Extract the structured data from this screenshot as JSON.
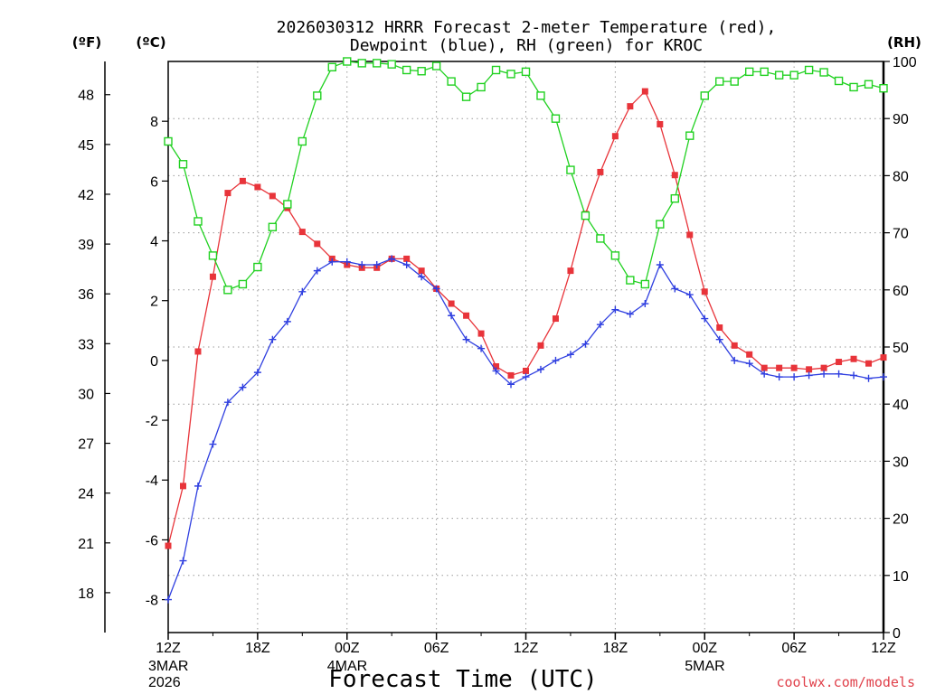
{
  "chart_data": {
    "type": "line",
    "title_line1": "2026030312 HRRR Forecast 2-meter Temperature (red),",
    "title_line2": "Dewpoint (blue), RH (green) for KROC",
    "left_unit_f": "(ºF)",
    "left_unit_c": "(ºC)",
    "right_unit": "(RH)",
    "xlabel": "Forecast Time (UTC)",
    "credit": "coolwx.com/models",
    "x_hours": [
      0,
      1,
      2,
      3,
      4,
      5,
      6,
      7,
      8,
      9,
      10,
      11,
      12,
      13,
      14,
      15,
      16,
      17,
      18,
      19,
      20,
      21,
      22,
      23,
      24,
      25,
      26,
      27,
      28,
      29,
      30,
      31,
      32,
      33,
      34,
      35,
      36,
      37,
      38,
      39,
      40,
      41,
      42,
      43,
      44,
      45,
      46,
      47,
      48
    ],
    "x_ticks": [
      {
        "hour": 0,
        "label": "12Z",
        "date": "3MAR",
        "year": "2026"
      },
      {
        "hour": 6,
        "label": "18Z"
      },
      {
        "hour": 12,
        "label": "00Z",
        "date": "4MAR"
      },
      {
        "hour": 18,
        "label": "06Z"
      },
      {
        "hour": 24,
        "label": "12Z"
      },
      {
        "hour": 30,
        "label": "18Z"
      },
      {
        "hour": 36,
        "label": "00Z",
        "date": "5MAR"
      },
      {
        "hour": 42,
        "label": "06Z"
      },
      {
        "hour": 48,
        "label": "12Z"
      }
    ],
    "c_axis": {
      "ylim": [
        -9.1,
        10
      ],
      "ticks": [
        -8,
        -6,
        -4,
        -2,
        0,
        2,
        4,
        6,
        8
      ]
    },
    "f_axis": {
      "ylim": [
        15.6,
        50
      ],
      "ticks": [
        18,
        21,
        24,
        27,
        30,
        33,
        36,
        39,
        42,
        45,
        48
      ]
    },
    "rh_axis": {
      "ylim": [
        0,
        100
      ],
      "ticks": [
        0,
        10,
        20,
        30,
        40,
        50,
        60,
        70,
        80,
        90,
        100
      ]
    },
    "grid": true,
    "series": [
      {
        "name": "Temperature",
        "color": "#e8343a",
        "marker": "filled-square",
        "axis": "c",
        "values": [
          -6.2,
          -4.2,
          0.3,
          2.8,
          5.6,
          6.0,
          5.8,
          5.5,
          5.1,
          4.3,
          3.9,
          3.4,
          3.2,
          3.1,
          3.1,
          3.4,
          3.4,
          3.0,
          2.4,
          1.9,
          1.5,
          0.9,
          -0.2,
          -0.5,
          -0.35,
          0.5,
          1.4,
          3.0,
          4.9,
          6.3,
          7.5,
          8.5,
          9.0,
          7.9,
          6.2,
          4.2,
          2.3,
          1.1,
          0.5,
          0.2,
          -0.25,
          -0.25,
          -0.25,
          -0.3,
          -0.25,
          -0.05,
          0.05,
          -0.1,
          0.1
        ]
      },
      {
        "name": "Dewpoint",
        "color": "#2f3fe0",
        "marker": "plus",
        "axis": "c",
        "values": [
          -8.0,
          -6.7,
          -4.2,
          -2.8,
          -1.4,
          -0.9,
          -0.4,
          0.7,
          1.3,
          2.3,
          3.0,
          3.3,
          3.3,
          3.2,
          3.2,
          3.4,
          3.2,
          2.8,
          2.4,
          1.5,
          0.7,
          0.4,
          -0.35,
          -0.8,
          -0.55,
          -0.3,
          0.0,
          0.2,
          0.55,
          1.2,
          1.7,
          1.55,
          1.9,
          3.2,
          2.4,
          2.2,
          1.4,
          0.7,
          0.0,
          -0.1,
          -0.45,
          -0.55,
          -0.55,
          -0.5,
          -0.45,
          -0.45,
          -0.5,
          -0.6,
          -0.55
        ]
      },
      {
        "name": "RH",
        "color": "#21d121",
        "marker": "open-square",
        "axis": "rh",
        "values": [
          86,
          82,
          72,
          66,
          60,
          61,
          64,
          71,
          75,
          86,
          94,
          99,
          100,
          99.7,
          99.7,
          99.5,
          98.5,
          98.3,
          99.2,
          96.5,
          93.8,
          95.5,
          98.5,
          97.8,
          98.2,
          94,
          90,
          81,
          73,
          69,
          66,
          61.7,
          61,
          71.5,
          76,
          87,
          94,
          96.5,
          96.5,
          98.2,
          98.2,
          97.6,
          97.6,
          98.5,
          98.1,
          96.6,
          95.5,
          96,
          95.3
        ]
      }
    ]
  }
}
